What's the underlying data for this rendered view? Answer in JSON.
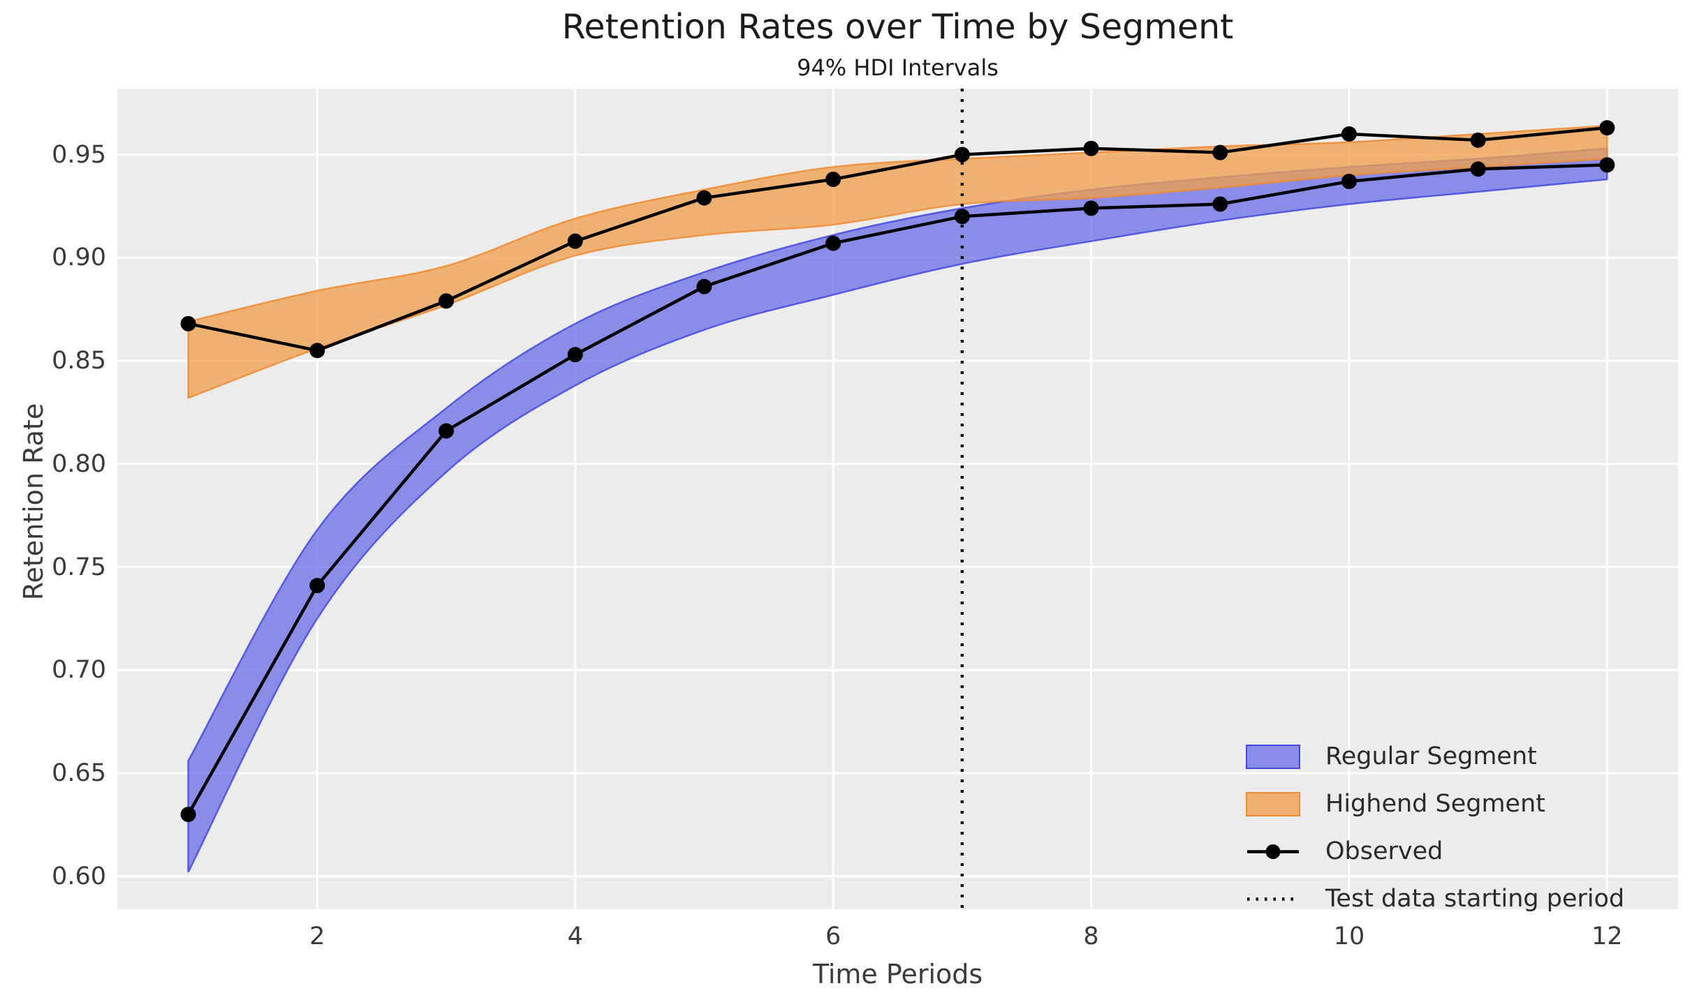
{
  "figure": {
    "title": "Retention Rates over Time by Segment",
    "subtitle": "94% HDI Intervals",
    "xlabel": "Time Periods",
    "ylabel": "Retention Rate"
  },
  "colors": {
    "plot_background": "#ECECEC",
    "gridline": "#FFFFFF",
    "regular_fill": "#6065E5",
    "regular_edge": "#4549E0",
    "highend_fill": "#F0A050",
    "highend_edge": "#EE8B33",
    "observed_line": "#000000",
    "vline": "#111111",
    "text": "#3a3a3a"
  },
  "chart_data": {
    "type": "line",
    "title": "Retention Rates over Time by Segment",
    "subtitle": "94% HDI Intervals",
    "xlabel": "Time Periods",
    "ylabel": "Retention Rate",
    "grid": true,
    "xlim": [
      0.45,
      12.55
    ],
    "ylim": [
      0.584,
      0.982
    ],
    "x": [
      1,
      2,
      3,
      4,
      5,
      6,
      7,
      8,
      9,
      10,
      11,
      12
    ],
    "xticks": [
      2,
      4,
      6,
      8,
      10,
      12
    ],
    "yticks": [
      0.6,
      0.65,
      0.7,
      0.75,
      0.8,
      0.85,
      0.9,
      0.95
    ],
    "ytick_labels": [
      "0.60",
      "0.65",
      "0.70",
      "0.75",
      "0.80",
      "0.85",
      "0.90",
      "0.95"
    ],
    "xtick_labels": [
      "2",
      "4",
      "6",
      "8",
      "10",
      "12"
    ],
    "series": [
      {
        "name": "Observed (Regular Segment)",
        "values": [
          0.63,
          0.741,
          0.816,
          0.853,
          0.886,
          0.907,
          0.92,
          0.924,
          0.926,
          0.937,
          0.943,
          0.945
        ]
      },
      {
        "name": "Observed (Highend Segment)",
        "values": [
          0.868,
          0.855,
          0.879,
          0.908,
          0.929,
          0.938,
          0.95,
          0.953,
          0.951,
          0.96,
          0.957,
          0.963
        ]
      }
    ],
    "bands": [
      {
        "name": "Regular Segment HDI",
        "lower": [
          0.602,
          0.725,
          0.796,
          0.838,
          0.865,
          0.882,
          0.897,
          0.908,
          0.918,
          0.926,
          0.932,
          0.938
        ],
        "upper": [
          0.656,
          0.768,
          0.827,
          0.868,
          0.893,
          0.911,
          0.924,
          0.933,
          0.939,
          0.944,
          0.948,
          0.953
        ]
      },
      {
        "name": "Highend Segment HDI",
        "lower": [
          0.832,
          0.856,
          0.877,
          0.901,
          0.911,
          0.916,
          0.926,
          0.929,
          0.934,
          0.94,
          0.944,
          0.948
        ],
        "upper": [
          0.869,
          0.884,
          0.896,
          0.919,
          0.933,
          0.944,
          0.948,
          0.951,
          0.954,
          0.956,
          0.96,
          0.964
        ]
      }
    ],
    "vline": {
      "x": 7,
      "label": "Test data starting period"
    },
    "legend": {
      "position": "lower right",
      "items": [
        {
          "swatch": "patch-blue",
          "label": "Regular Segment"
        },
        {
          "swatch": "patch-orange",
          "label": "Highend Segment"
        },
        {
          "swatch": "line-marker",
          "label": "Observed"
        },
        {
          "swatch": "dotted-line",
          "label": "Test data starting period"
        }
      ]
    }
  }
}
